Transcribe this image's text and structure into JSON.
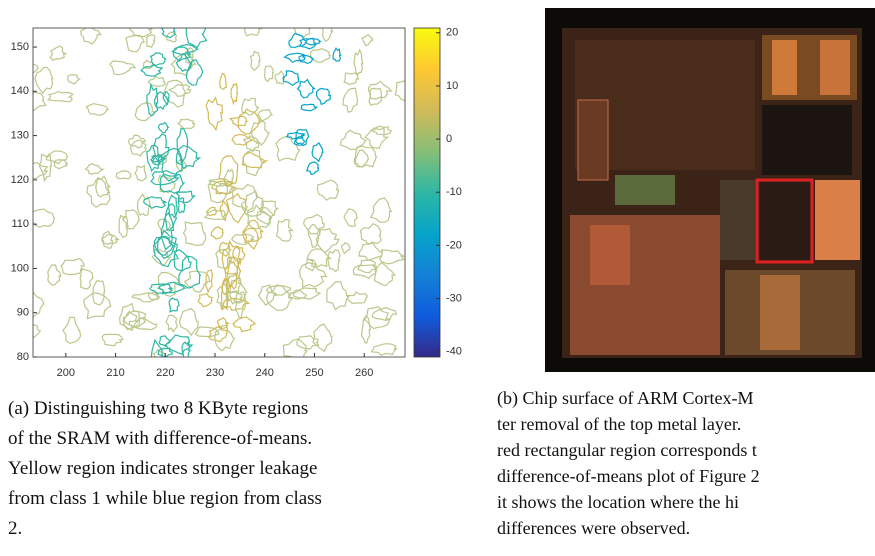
{
  "figures": [
    {
      "chart_data": {
        "type": "contour",
        "xlim": [
          193.4,
          268.2
        ],
        "xticks": [
          200,
          210,
          220,
          230,
          240,
          250,
          260
        ],
        "ylim": [
          80,
          154.3
        ],
        "yticks": [
          80,
          90,
          100,
          110,
          120,
          130,
          140,
          150
        ],
        "colorbar": {
          "lim": [
            -41,
            20.9
          ],
          "ticks": [
            -40,
            -30,
            -20,
            -10,
            0,
            10,
            20
          ],
          "colormap": [
            "#352a87",
            "#0f5cdd",
            "#1481d6",
            "#06a4ca",
            "#2eb7a4",
            "#87bf77",
            "#d1bb59",
            "#fec832",
            "#f9fb0e"
          ]
        }
      },
      "caption": [
        "(a) Distinguishing two 8 KByte regions",
        "of the SRAM with difference-of-means.",
        "Yellow region indicates stronger leakage",
        "from class 1 while blue region from class",
        "2."
      ]
    },
    {
      "caption": [
        "(b) Chip surface of ARM Cortex-M",
        "ter removal of the top metal layer.",
        "red rectangular region corresponds t",
        "difference-of-means plot of Figure 2",
        "it shows the location where the hi",
        "differences were observed."
      ]
    }
  ]
}
